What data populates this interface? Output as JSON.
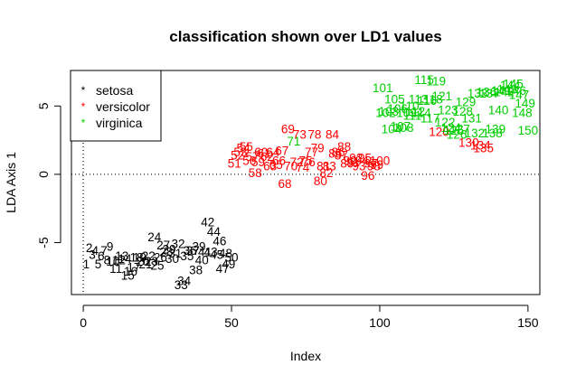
{
  "chart_data": {
    "type": "scatter",
    "title": "classification shown over LD1 values",
    "xlabel": "Index",
    "ylabel": "LDA Axis 1",
    "xlim": [
      -4,
      154
    ],
    "ylim": [
      -8.8,
      7.6
    ],
    "x_ticks": [
      0,
      50,
      100,
      150
    ],
    "y_ticks": [
      -5,
      0,
      5
    ],
    "reference_lines": {
      "h": 0,
      "v": 0,
      "style": "dotted"
    },
    "legend": {
      "position": "top-left",
      "entries": [
        {
          "label": "setosa",
          "color": "#000000",
          "marker": "*"
        },
        {
          "label": "versicolor",
          "color": "#ff0000",
          "marker": "*"
        },
        {
          "label": "virginica",
          "color": "#00cd00",
          "marker": "*"
        }
      ]
    },
    "marker_note": "points drawn as their index number, colored by predicted class",
    "points": [
      {
        "i": 1,
        "y": -6.6,
        "c": "#000000"
      },
      {
        "i": 2,
        "y": -5.4,
        "c": "#000000"
      },
      {
        "i": 3,
        "y": -5.9,
        "c": "#000000"
      },
      {
        "i": 4,
        "y": -5.6,
        "c": "#000000"
      },
      {
        "i": 5,
        "y": -6.6,
        "c": "#000000"
      },
      {
        "i": 6,
        "y": -6.0,
        "c": "#000000"
      },
      {
        "i": 7,
        "y": -5.6,
        "c": "#000000"
      },
      {
        "i": 8,
        "y": -6.3,
        "c": "#000000"
      },
      {
        "i": 9,
        "y": -5.3,
        "c": "#000000"
      },
      {
        "i": 10,
        "y": -6.4,
        "c": "#000000"
      },
      {
        "i": 11,
        "y": -6.9,
        "c": "#000000"
      },
      {
        "i": 12,
        "y": -6.3,
        "c": "#000000"
      },
      {
        "i": 13,
        "y": -6.0,
        "c": "#000000"
      },
      {
        "i": 14,
        "y": -6.2,
        "c": "#000000"
      },
      {
        "i": 15,
        "y": -7.4,
        "c": "#000000"
      },
      {
        "i": 16,
        "y": -7.1,
        "c": "#000000"
      },
      {
        "i": 17,
        "y": -6.8,
        "c": "#000000"
      },
      {
        "i": 18,
        "y": -6.1,
        "c": "#000000"
      },
      {
        "i": 19,
        "y": -6.1,
        "c": "#000000"
      },
      {
        "i": 20,
        "y": -6.4,
        "c": "#000000"
      },
      {
        "i": 21,
        "y": -6.6,
        "c": "#000000"
      },
      {
        "i": 22,
        "y": -6.0,
        "c": "#000000"
      },
      {
        "i": 23,
        "y": -6.4,
        "c": "#000000"
      },
      {
        "i": 24,
        "y": -4.6,
        "c": "#000000"
      },
      {
        "i": 25,
        "y": -6.7,
        "c": "#000000"
      },
      {
        "i": 26,
        "y": -6.1,
        "c": "#000000"
      },
      {
        "i": 27,
        "y": -5.2,
        "c": "#000000"
      },
      {
        "i": 28,
        "y": -5.7,
        "c": "#000000"
      },
      {
        "i": 29,
        "y": -5.5,
        "c": "#000000"
      },
      {
        "i": 30,
        "y": -6.2,
        "c": "#000000"
      },
      {
        "i": 31,
        "y": -5.8,
        "c": "#000000"
      },
      {
        "i": 32,
        "y": -5.1,
        "c": "#000000"
      },
      {
        "i": 33,
        "y": -8.1,
        "c": "#000000"
      },
      {
        "i": 34,
        "y": -7.8,
        "c": "#000000"
      },
      {
        "i": 35,
        "y": -6.0,
        "c": "#000000"
      },
      {
        "i": 36,
        "y": -5.6,
        "c": "#000000"
      },
      {
        "i": 37,
        "y": -5.6,
        "c": "#000000"
      },
      {
        "i": 38,
        "y": -7.0,
        "c": "#000000"
      },
      {
        "i": 39,
        "y": -5.3,
        "c": "#000000"
      },
      {
        "i": 40,
        "y": -6.3,
        "c": "#000000"
      },
      {
        "i": 41,
        "y": -5.7,
        "c": "#000000"
      },
      {
        "i": 42,
        "y": -3.5,
        "c": "#000000"
      },
      {
        "i": 43,
        "y": -5.7,
        "c": "#000000"
      },
      {
        "i": 44,
        "y": -4.2,
        "c": "#000000"
      },
      {
        "i": 45,
        "y": -5.9,
        "c": "#000000"
      },
      {
        "i": 46,
        "y": -4.9,
        "c": "#000000"
      },
      {
        "i": 47,
        "y": -6.9,
        "c": "#000000"
      },
      {
        "i": 48,
        "y": -5.8,
        "c": "#000000"
      },
      {
        "i": 49,
        "y": -6.6,
        "c": "#000000"
      },
      {
        "i": 50,
        "y": -6.1,
        "c": "#000000"
      },
      {
        "i": 51,
        "y": 0.8,
        "c": "#ff0000"
      },
      {
        "i": 52,
        "y": 1.4,
        "c": "#ff0000"
      },
      {
        "i": 53,
        "y": 1.6,
        "c": "#ff0000"
      },
      {
        "i": 54,
        "y": 1.9,
        "c": "#ff0000"
      },
      {
        "i": 55,
        "y": 2.0,
        "c": "#ff0000"
      },
      {
        "i": 56,
        "y": 1.0,
        "c": "#ff0000"
      },
      {
        "i": 57,
        "y": 1.3,
        "c": "#ff0000"
      },
      {
        "i": 58,
        "y": 0.1,
        "c": "#ff0000"
      },
      {
        "i": 59,
        "y": 0.9,
        "c": "#ff0000"
      },
      {
        "i": 60,
        "y": 1.6,
        "c": "#ff0000"
      },
      {
        "i": 61,
        "y": 1.5,
        "c": "#ff0000"
      },
      {
        "i": 62,
        "y": 1.3,
        "c": "#ff0000"
      },
      {
        "i": 63,
        "y": 0.6,
        "c": "#ff0000"
      },
      {
        "i": 64,
        "y": 1.6,
        "c": "#ff0000"
      },
      {
        "i": 65,
        "y": 0.7,
        "c": "#ff0000"
      },
      {
        "i": 66,
        "y": 1.0,
        "c": "#ff0000"
      },
      {
        "i": 67,
        "y": 1.7,
        "c": "#ff0000"
      },
      {
        "i": 68,
        "y": -0.7,
        "c": "#ff0000"
      },
      {
        "i": 69,
        "y": 3.3,
        "c": "#ff0000"
      },
      {
        "i": 70,
        "y": 0.6,
        "c": "#ff0000"
      },
      {
        "i": 71,
        "y": 2.4,
        "c": "#00cd00"
      },
      {
        "i": 72,
        "y": 0.9,
        "c": "#ff0000"
      },
      {
        "i": 73,
        "y": 2.9,
        "c": "#ff0000"
      },
      {
        "i": 74,
        "y": 0.5,
        "c": "#ff0000"
      },
      {
        "i": 75,
        "y": 1.0,
        "c": "#ff0000"
      },
      {
        "i": 76,
        "y": 0.9,
        "c": "#ff0000"
      },
      {
        "i": 77,
        "y": 1.6,
        "c": "#ff0000"
      },
      {
        "i": 78,
        "y": 2.9,
        "c": "#ff0000"
      },
      {
        "i": 79,
        "y": 1.9,
        "c": "#ff0000"
      },
      {
        "i": 80,
        "y": -0.5,
        "c": "#ff0000"
      },
      {
        "i": 81,
        "y": 0.6,
        "c": "#ff0000"
      },
      {
        "i": 82,
        "y": 0.1,
        "c": "#ff0000"
      },
      {
        "i": 83,
        "y": 0.6,
        "c": "#ff0000"
      },
      {
        "i": 84,
        "y": 2.9,
        "c": "#ff0000"
      },
      {
        "i": 85,
        "y": 1.5,
        "c": "#ff0000"
      },
      {
        "i": 86,
        "y": 1.6,
        "c": "#ff0000"
      },
      {
        "i": 87,
        "y": 1.4,
        "c": "#ff0000"
      },
      {
        "i": 88,
        "y": 2.0,
        "c": "#ff0000"
      },
      {
        "i": 89,
        "y": 0.8,
        "c": "#ff0000"
      },
      {
        "i": 90,
        "y": 1.0,
        "c": "#ff0000"
      },
      {
        "i": 91,
        "y": 0.9,
        "c": "#ff0000"
      },
      {
        "i": 92,
        "y": 1.2,
        "c": "#ff0000"
      },
      {
        "i": 93,
        "y": 0.6,
        "c": "#ff0000"
      },
      {
        "i": 94,
        "y": 1.0,
        "c": "#ff0000"
      },
      {
        "i": 95,
        "y": 1.2,
        "c": "#ff0000"
      },
      {
        "i": 96,
        "y": -0.1,
        "c": "#ff0000"
      },
      {
        "i": 97,
        "y": 0.8,
        "c": "#ff0000"
      },
      {
        "i": 98,
        "y": 0.6,
        "c": "#ff0000"
      },
      {
        "i": 99,
        "y": 0.7,
        "c": "#ff0000"
      },
      {
        "i": 100,
        "y": 1.0,
        "c": "#ff0000"
      },
      {
        "i": 101,
        "y": 6.3,
        "c": "#00cd00"
      },
      {
        "i": 102,
        "y": 4.5,
        "c": "#00cd00"
      },
      {
        "i": 103,
        "y": 4.6,
        "c": "#00cd00"
      },
      {
        "i": 104,
        "y": 3.3,
        "c": "#00cd00"
      },
      {
        "i": 105,
        "y": 5.5,
        "c": "#00cd00"
      },
      {
        "i": 106,
        "y": 4.8,
        "c": "#00cd00"
      },
      {
        "i": 107,
        "y": 3.5,
        "c": "#00cd00"
      },
      {
        "i": 108,
        "y": 3.4,
        "c": "#00cd00"
      },
      {
        "i": 109,
        "y": 4.5,
        "c": "#00cd00"
      },
      {
        "i": 110,
        "y": 5.0,
        "c": "#00cd00"
      },
      {
        "i": 111,
        "y": 4.3,
        "c": "#00cd00"
      },
      {
        "i": 112,
        "y": 4.6,
        "c": "#00cd00"
      },
      {
        "i": 113,
        "y": 5.5,
        "c": "#00cd00"
      },
      {
        "i": 114,
        "y": 4.5,
        "c": "#00cd00"
      },
      {
        "i": 115,
        "y": 6.9,
        "c": "#00cd00"
      },
      {
        "i": 116,
        "y": 5.4,
        "c": "#00cd00"
      },
      {
        "i": 117,
        "y": 4.1,
        "c": "#00cd00"
      },
      {
        "i": 118,
        "y": 5.5,
        "c": "#00cd00"
      },
      {
        "i": 119,
        "y": 6.8,
        "c": "#00cd00"
      },
      {
        "i": 120,
        "y": 3.1,
        "c": "#ff0000"
      },
      {
        "i": 121,
        "y": 5.7,
        "c": "#00cd00"
      },
      {
        "i": 122,
        "y": 3.8,
        "c": "#00cd00"
      },
      {
        "i": 123,
        "y": 4.7,
        "c": "#00cd00"
      },
      {
        "i": 124,
        "y": 3.4,
        "c": "#00cd00"
      },
      {
        "i": 125,
        "y": 3.2,
        "c": "#00cd00"
      },
      {
        "i": 126,
        "y": 2.9,
        "c": "#00cd00"
      },
      {
        "i": 127,
        "y": 3.3,
        "c": "#00cd00"
      },
      {
        "i": 128,
        "y": 4.6,
        "c": "#00cd00"
      },
      {
        "i": 129,
        "y": 5.3,
        "c": "#00cd00"
      },
      {
        "i": 130,
        "y": 2.3,
        "c": "#ff0000"
      },
      {
        "i": 131,
        "y": 4.1,
        "c": "#00cd00"
      },
      {
        "i": 132,
        "y": 3.0,
        "c": "#00cd00"
      },
      {
        "i": 133,
        "y": 5.9,
        "c": "#00cd00"
      },
      {
        "i": 134,
        "y": 2.1,
        "c": "#ff0000"
      },
      {
        "i": 135,
        "y": 1.9,
        "c": "#ff0000"
      },
      {
        "i": 136,
        "y": 6.0,
        "c": "#00cd00"
      },
      {
        "i": 137,
        "y": 5.9,
        "c": "#00cd00"
      },
      {
        "i": 138,
        "y": 3.0,
        "c": "#00cd00"
      },
      {
        "i": 139,
        "y": 3.3,
        "c": "#00cd00"
      },
      {
        "i": 140,
        "y": 4.7,
        "c": "#00cd00"
      },
      {
        "i": 141,
        "y": 6.1,
        "c": "#00cd00"
      },
      {
        "i": 142,
        "y": 6.0,
        "c": "#00cd00"
      },
      {
        "i": 143,
        "y": 6.2,
        "c": "#00cd00"
      },
      {
        "i": 144,
        "y": 6.5,
        "c": "#00cd00"
      },
      {
        "i": 145,
        "y": 6.6,
        "c": "#00cd00"
      },
      {
        "i": 146,
        "y": 6.1,
        "c": "#00cd00"
      },
      {
        "i": 147,
        "y": 5.8,
        "c": "#00cd00"
      },
      {
        "i": 148,
        "y": 4.5,
        "c": "#00cd00"
      },
      {
        "i": 149,
        "y": 5.2,
        "c": "#00cd00"
      },
      {
        "i": 150,
        "y": 3.2,
        "c": "#00cd00"
      }
    ]
  }
}
